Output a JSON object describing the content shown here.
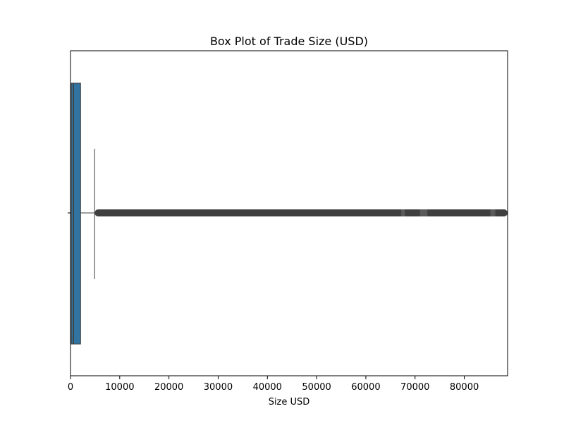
{
  "chart_data": {
    "type": "box",
    "orientation": "horizontal",
    "title": "Box Plot of Trade Size (USD)",
    "xlabel": "Size USD",
    "ylabel": "",
    "xlim": [
      0,
      88800
    ],
    "xticks": [
      0,
      10000,
      20000,
      30000,
      40000,
      50000,
      60000,
      70000,
      80000
    ],
    "xtick_labels": [
      "0",
      "10000",
      "20000",
      "30000",
      "40000",
      "50000",
      "60000",
      "70000",
      "80000"
    ],
    "grid": false,
    "legend": "none",
    "box": {
      "whisker_low": 0,
      "q1": 150,
      "median": 600,
      "q3": 2050,
      "whisker_high": 4900,
      "outlier_range": [
        4900,
        88800
      ],
      "outlier_sparse_bands": [
        [
          67200,
          67900
        ],
        [
          71000,
          72500
        ],
        [
          85300,
          86300
        ]
      ]
    },
    "colors": {
      "box_fill": "#3274a1",
      "lines": "#3f3f3f",
      "outliers": "#3f3f3f",
      "frame": "#000000"
    }
  }
}
